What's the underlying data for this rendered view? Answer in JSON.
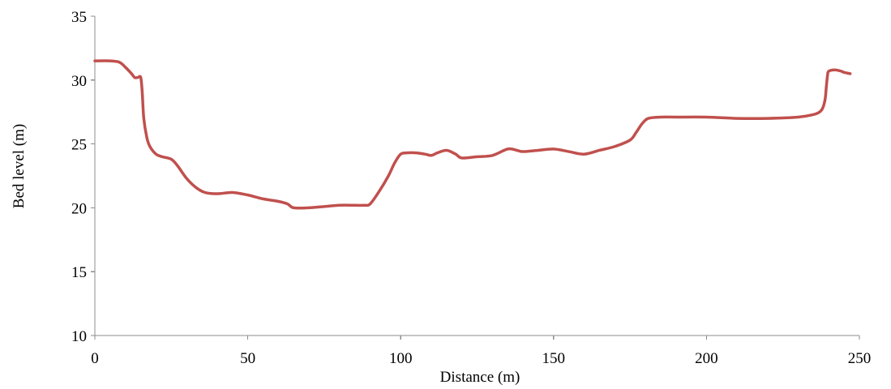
{
  "chart_data": {
    "type": "line",
    "title": "",
    "xlabel": "Distance (m)",
    "ylabel": "Bed level (m)",
    "xlim": [
      0,
      250
    ],
    "ylim": [
      10,
      35
    ],
    "x_ticks": [
      0,
      50,
      100,
      150,
      200,
      250
    ],
    "y_ticks": [
      10,
      15,
      20,
      25,
      30,
      35
    ],
    "x_tick_labels": [
      "0",
      "50",
      "100",
      "150",
      "200",
      "250"
    ],
    "y_tick_labels": [
      "10",
      "15",
      "20",
      "25",
      "30",
      "35"
    ],
    "grid": false,
    "legend": "none",
    "colors": {
      "series": "#c0504d",
      "axis": "#8c8c8c",
      "text": "#000000"
    },
    "series": [
      {
        "x": [
          0,
          5,
          8,
          10,
          12,
          13,
          14,
          15,
          15.5,
          16,
          17,
          18,
          20,
          22,
          25,
          27,
          30,
          33,
          36,
          40,
          45,
          50,
          55,
          60,
          63,
          65,
          70,
          75,
          80,
          85,
          88,
          90,
          93,
          96,
          98,
          100,
          102,
          105,
          108,
          110,
          112,
          115,
          118,
          120,
          125,
          130,
          135,
          138,
          140,
          145,
          150,
          155,
          160,
          165,
          170,
          175,
          177,
          179,
          181,
          185,
          190,
          200,
          210,
          220,
          230,
          235,
          237,
          238,
          238.8,
          239.2,
          239.6,
          240,
          242,
          244,
          245,
          247
        ],
        "y": [
          31.5,
          31.5,
          31.4,
          31.0,
          30.5,
          30.2,
          30.2,
          30.2,
          29.0,
          27.0,
          25.5,
          24.8,
          24.2,
          24.0,
          23.8,
          23.3,
          22.3,
          21.6,
          21.2,
          21.1,
          21.2,
          21.0,
          20.7,
          20.5,
          20.3,
          20.0,
          20.0,
          20.1,
          20.2,
          20.2,
          20.2,
          20.3,
          21.3,
          22.5,
          23.5,
          24.2,
          24.3,
          24.3,
          24.2,
          24.1,
          24.3,
          24.5,
          24.2,
          23.9,
          24.0,
          24.1,
          24.6,
          24.5,
          24.4,
          24.5,
          24.6,
          24.4,
          24.2,
          24.5,
          24.8,
          25.3,
          25.9,
          26.6,
          27.0,
          27.1,
          27.1,
          27.1,
          27.0,
          27.0,
          27.1,
          27.3,
          27.5,
          27.8,
          28.5,
          29.5,
          30.4,
          30.7,
          30.8,
          30.7,
          30.6,
          30.5
        ]
      }
    ]
  }
}
